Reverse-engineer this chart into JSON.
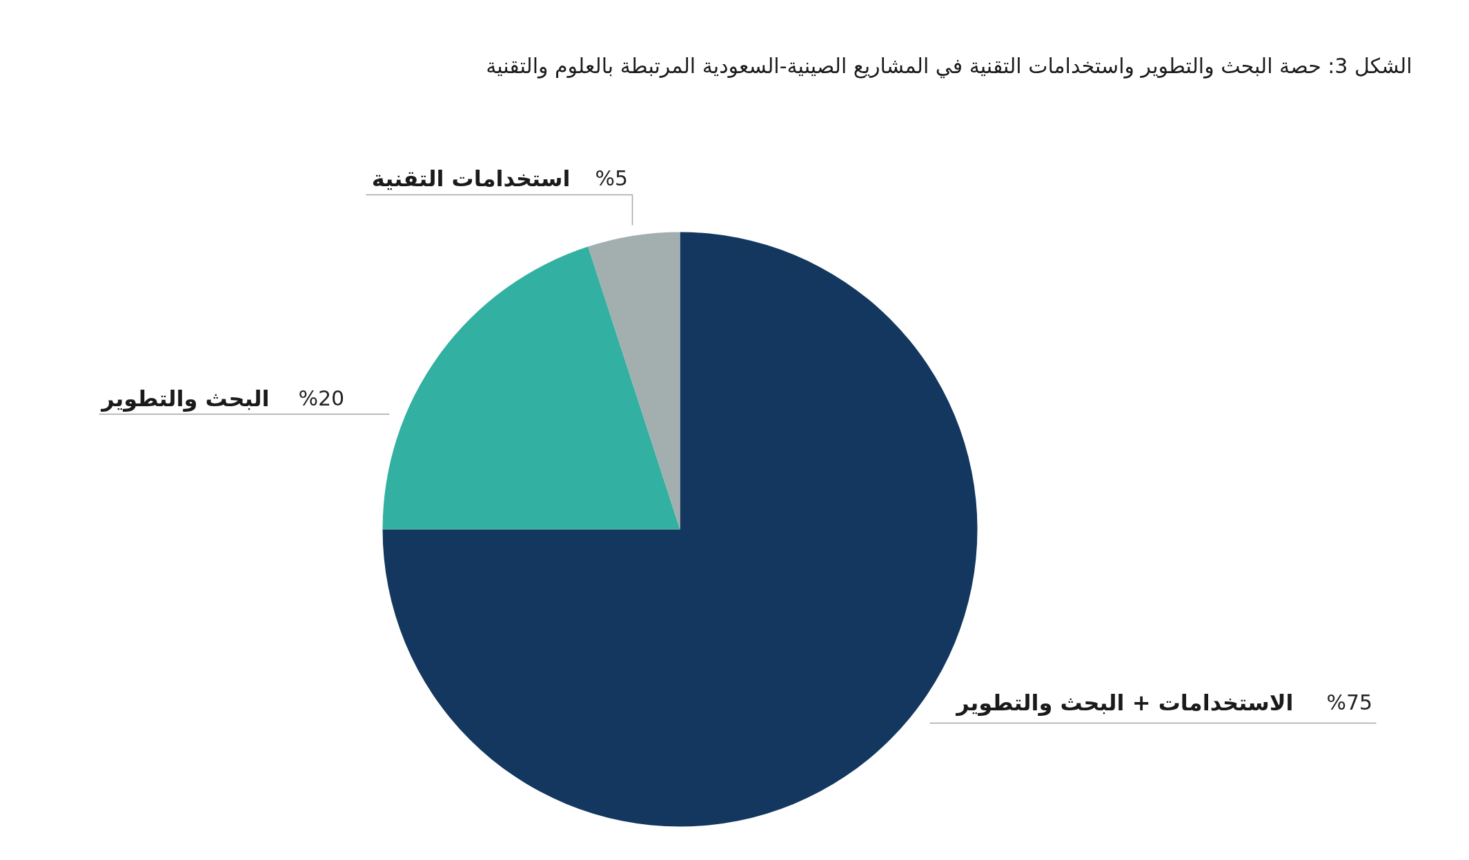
{
  "chart_data": {
    "type": "pie",
    "title": "الشكل 3: حصة البحث والتطوير واستخدامات التقنية في المشاريع الصينية-السعودية المرتبطة بالعلوم والتقنية",
    "categories": [
      "الاستخدامات + البحث والتطوير",
      "البحث والتطوير",
      "استخدامات التقنية"
    ],
    "values": [
      75,
      20,
      5
    ],
    "colors": [
      "#13375f",
      "#32b0a1",
      "#a2afae"
    ],
    "value_labels": [
      "%75",
      "%20",
      "%5"
    ]
  }
}
